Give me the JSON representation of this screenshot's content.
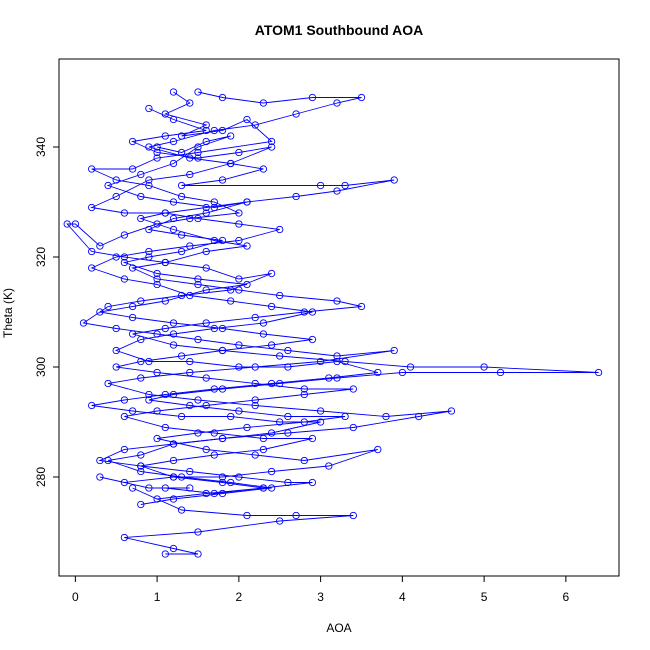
{
  "chart_data": {
    "type": "scatter",
    "title": "ATOM1 Southbound AOA",
    "xlabel": "AOA",
    "ylabel": "Theta (K)",
    "xlim": [
      -0.2,
      6.65
    ],
    "ylim": [
      262,
      356
    ],
    "x_ticks": [
      0,
      1,
      2,
      3,
      4,
      5,
      6
    ],
    "y_ticks": [
      280,
      300,
      320,
      340
    ],
    "grid": false,
    "color": "#0000ff",
    "marker": "open-circle",
    "connected": true,
    "series": [
      {
        "points": [
          [
            1.2,
            350
          ],
          [
            1.4,
            348
          ],
          [
            1.1,
            346
          ],
          [
            1.6,
            344
          ],
          [
            1.3,
            342
          ],
          [
            1.8,
            343
          ],
          [
            2.1,
            345
          ],
          [
            2.4,
            341
          ],
          [
            1.5,
            339
          ],
          [
            1.0,
            338
          ],
          [
            0.7,
            336
          ],
          [
            0.2,
            336
          ],
          [
            0.5,
            334
          ],
          [
            0.9,
            333
          ],
          [
            1.3,
            331
          ],
          [
            1.7,
            330
          ],
          [
            2.0,
            328
          ],
          [
            1.4,
            327
          ],
          [
            1.0,
            326
          ],
          [
            0.6,
            324
          ],
          [
            0.3,
            322
          ],
          [
            0.0,
            326
          ],
          [
            -0.1,
            326
          ],
          [
            0.2,
            321
          ],
          [
            0.6,
            320
          ],
          [
            1.1,
            319
          ],
          [
            1.6,
            318
          ],
          [
            2.0,
            316
          ],
          [
            2.4,
            317
          ],
          [
            1.9,
            314
          ],
          [
            1.3,
            313
          ],
          [
            0.8,
            312
          ],
          [
            0.4,
            311
          ],
          [
            0.1,
            308
          ],
          [
            0.5,
            307
          ],
          [
            1.0,
            306
          ],
          [
            1.5,
            305
          ],
          [
            2.0,
            304
          ],
          [
            2.6,
            303
          ],
          [
            3.2,
            302
          ],
          [
            3.9,
            303
          ],
          [
            3.0,
            301
          ],
          [
            2.2,
            300
          ],
          [
            1.4,
            299
          ],
          [
            0.8,
            298
          ],
          [
            0.4,
            297
          ],
          [
            0.9,
            295
          ],
          [
            1.5,
            294
          ],
          [
            2.2,
            293
          ],
          [
            3.0,
            292
          ],
          [
            3.8,
            291
          ],
          [
            4.6,
            292
          ],
          [
            4.2,
            291
          ],
          [
            3.4,
            289
          ],
          [
            2.6,
            288
          ],
          [
            1.8,
            287
          ],
          [
            1.2,
            286
          ],
          [
            0.6,
            285
          ],
          [
            0.3,
            283
          ],
          [
            0.8,
            282
          ],
          [
            1.4,
            281
          ],
          [
            2.0,
            280
          ],
          [
            2.6,
            279
          ],
          [
            2.9,
            279
          ],
          [
            2.3,
            278
          ],
          [
            1.6,
            277
          ],
          [
            1.0,
            276
          ],
          [
            0.7,
            278
          ],
          [
            1.3,
            274
          ],
          [
            2.1,
            273
          ],
          [
            2.7,
            273
          ],
          [
            3.4,
            273
          ],
          [
            2.5,
            272
          ],
          [
            1.5,
            270
          ],
          [
            0.6,
            269
          ],
          [
            1.2,
            267
          ],
          [
            1.5,
            266
          ],
          [
            1.1,
            266
          ]
        ]
      },
      {
        "points": [
          [
            1.5,
            350
          ],
          [
            1.8,
            349
          ],
          [
            2.3,
            348
          ],
          [
            2.9,
            349
          ],
          [
            3.5,
            349
          ],
          [
            3.2,
            348
          ],
          [
            2.7,
            346
          ],
          [
            2.2,
            344
          ],
          [
            1.7,
            343
          ],
          [
            1.2,
            341
          ],
          [
            0.9,
            340
          ],
          [
            1.4,
            338
          ],
          [
            1.9,
            337
          ],
          [
            2.3,
            336
          ],
          [
            1.8,
            334
          ],
          [
            1.3,
            333
          ],
          [
            3.0,
            333
          ],
          [
            3.3,
            333
          ],
          [
            3.9,
            334
          ],
          [
            3.2,
            332
          ],
          [
            2.7,
            331
          ],
          [
            2.1,
            330
          ],
          [
            1.6,
            329
          ],
          [
            1.1,
            328
          ],
          [
            0.8,
            327
          ],
          [
            1.2,
            325
          ],
          [
            1.7,
            323
          ],
          [
            2.1,
            322
          ],
          [
            1.6,
            321
          ],
          [
            1.1,
            319
          ],
          [
            0.7,
            318
          ],
          [
            1.0,
            316
          ],
          [
            1.5,
            315
          ],
          [
            2.0,
            314
          ],
          [
            2.5,
            313
          ],
          [
            3.2,
            312
          ],
          [
            3.5,
            311
          ],
          [
            2.8,
            310
          ],
          [
            2.2,
            309
          ],
          [
            1.6,
            308
          ],
          [
            1.1,
            307
          ],
          [
            0.7,
            306
          ],
          [
            1.2,
            304
          ],
          [
            1.8,
            303
          ],
          [
            2.5,
            302
          ],
          [
            3.3,
            301
          ],
          [
            4.1,
            300
          ],
          [
            5.0,
            300
          ],
          [
            6.4,
            299
          ],
          [
            5.2,
            299
          ],
          [
            4.0,
            299
          ],
          [
            3.2,
            298
          ],
          [
            2.5,
            297
          ],
          [
            1.8,
            296
          ],
          [
            1.2,
            295
          ],
          [
            0.9,
            294
          ],
          [
            1.4,
            293
          ],
          [
            2.0,
            292
          ],
          [
            2.6,
            291
          ],
          [
            3.3,
            291
          ],
          [
            2.8,
            290
          ],
          [
            2.1,
            289
          ],
          [
            1.5,
            288
          ],
          [
            1.0,
            287
          ],
          [
            1.6,
            285
          ],
          [
            2.2,
            284
          ],
          [
            2.8,
            283
          ],
          [
            3.7,
            285
          ],
          [
            3.1,
            282
          ],
          [
            2.4,
            281
          ],
          [
            1.8,
            280
          ],
          [
            1.2,
            280
          ],
          [
            0.6,
            279
          ],
          [
            0.3,
            280
          ],
          [
            0.9,
            278
          ],
          [
            1.4,
            278
          ]
        ]
      },
      {
        "points": [
          [
            0.9,
            347
          ],
          [
            1.2,
            345
          ],
          [
            1.6,
            343
          ],
          [
            1.1,
            342
          ],
          [
            0.7,
            341
          ],
          [
            1.0,
            339
          ],
          [
            1.5,
            338
          ],
          [
            2.0,
            339
          ],
          [
            2.4,
            340
          ],
          [
            1.9,
            337
          ],
          [
            1.4,
            335
          ],
          [
            0.9,
            334
          ],
          [
            0.5,
            331
          ],
          [
            0.2,
            329
          ],
          [
            0.6,
            328
          ],
          [
            1.1,
            328
          ],
          [
            1.5,
            327
          ],
          [
            2.0,
            326
          ],
          [
            2.5,
            325
          ],
          [
            2.0,
            323
          ],
          [
            1.4,
            322
          ],
          [
            0.9,
            321
          ],
          [
            0.5,
            320
          ],
          [
            0.2,
            318
          ],
          [
            0.6,
            316
          ],
          [
            1.0,
            315
          ],
          [
            1.4,
            313
          ],
          [
            1.9,
            312
          ],
          [
            2.4,
            311
          ],
          [
            2.9,
            310
          ],
          [
            2.3,
            308
          ],
          [
            1.7,
            307
          ],
          [
            1.2,
            306
          ],
          [
            0.8,
            305
          ],
          [
            0.5,
            303
          ],
          [
            0.9,
            301
          ],
          [
            1.4,
            301
          ],
          [
            2.0,
            300
          ],
          [
            2.6,
            300
          ],
          [
            3.2,
            301
          ],
          [
            3.7,
            299
          ],
          [
            3.1,
            298
          ],
          [
            2.4,
            297
          ],
          [
            1.7,
            296
          ],
          [
            1.1,
            295
          ],
          [
            0.6,
            294
          ],
          [
            0.2,
            293
          ],
          [
            0.7,
            292
          ],
          [
            1.3,
            291
          ],
          [
            1.9,
            291
          ],
          [
            2.5,
            290
          ],
          [
            3.0,
            290
          ],
          [
            2.4,
            288
          ],
          [
            1.8,
            287
          ],
          [
            1.2,
            286
          ],
          [
            0.8,
            284
          ],
          [
            0.4,
            283
          ],
          [
            0.8,
            281
          ],
          [
            1.3,
            280
          ],
          [
            1.9,
            279
          ],
          [
            2.4,
            278
          ],
          [
            1.8,
            277
          ],
          [
            1.2,
            276
          ],
          [
            0.8,
            275
          ]
        ]
      },
      {
        "points": [
          [
            1.0,
            340
          ],
          [
            1.3,
            339
          ],
          [
            1.6,
            341
          ],
          [
            1.9,
            342
          ],
          [
            1.5,
            340
          ],
          [
            1.2,
            337
          ],
          [
            0.8,
            335
          ],
          [
            0.4,
            333
          ],
          [
            0.8,
            331
          ],
          [
            1.2,
            330
          ],
          [
            1.7,
            329
          ],
          [
            2.1,
            330
          ],
          [
            1.6,
            328
          ],
          [
            1.2,
            327
          ],
          [
            0.9,
            325
          ],
          [
            1.3,
            324
          ],
          [
            1.8,
            323
          ],
          [
            1.3,
            321
          ],
          [
            0.9,
            320
          ],
          [
            0.6,
            319
          ],
          [
            1.0,
            317
          ],
          [
            1.5,
            316
          ],
          [
            2.1,
            315
          ],
          [
            1.6,
            314
          ],
          [
            1.1,
            312
          ],
          [
            0.7,
            311
          ],
          [
            0.3,
            310
          ],
          [
            0.7,
            309
          ],
          [
            1.2,
            308
          ],
          [
            1.8,
            307
          ],
          [
            2.3,
            306
          ],
          [
            2.9,
            305
          ],
          [
            2.4,
            304
          ],
          [
            1.8,
            303
          ],
          [
            1.3,
            302
          ],
          [
            0.8,
            301
          ],
          [
            0.5,
            300
          ],
          [
            1.0,
            299
          ],
          [
            1.6,
            298
          ],
          [
            2.2,
            297
          ],
          [
            2.8,
            296
          ],
          [
            3.4,
            296
          ],
          [
            2.8,
            295
          ],
          [
            2.2,
            294
          ],
          [
            1.6,
            293
          ],
          [
            1.0,
            292
          ],
          [
            0.6,
            291
          ],
          [
            1.1,
            289
          ],
          [
            1.7,
            288
          ],
          [
            2.3,
            287
          ],
          [
            2.9,
            287
          ],
          [
            2.3,
            285
          ],
          [
            1.7,
            284
          ],
          [
            1.2,
            283
          ],
          [
            0.8,
            282
          ],
          [
            1.2,
            280
          ],
          [
            1.8,
            279
          ],
          [
            2.3,
            278
          ],
          [
            1.7,
            277
          ],
          [
            1.1,
            278
          ]
        ]
      }
    ]
  }
}
